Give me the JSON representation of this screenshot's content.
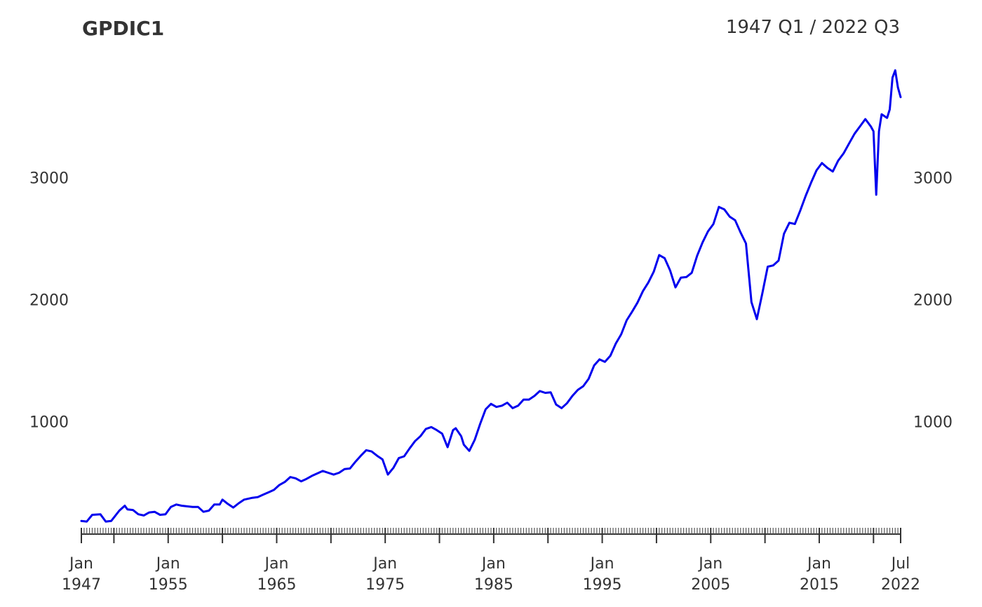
{
  "chart_data": {
    "type": "line",
    "title": "GPDIC1",
    "subtitle": "1947 Q1 / 2022 Q3",
    "xlabel": "",
    "ylabel": "",
    "x_range": [
      "1947-01",
      "2022-07"
    ],
    "ylim": [
      60,
      3900
    ],
    "y_ticks": [
      1000,
      2000,
      3000
    ],
    "x_major_ticks": [
      {
        "date": "1947-01",
        "label1": "Jan",
        "label2": "1947"
      },
      {
        "date": "1955-01",
        "label1": "Jan",
        "label2": "1955"
      },
      {
        "date": "1965-01",
        "label1": "Jan",
        "label2": "1965"
      },
      {
        "date": "1975-01",
        "label1": "Jan",
        "label2": "1975"
      },
      {
        "date": "1985-01",
        "label1": "Jan",
        "label2": "1985"
      },
      {
        "date": "1995-01",
        "label1": "Jan",
        "label2": "1995"
      },
      {
        "date": "2005-01",
        "label1": "Jan",
        "label2": "2005"
      },
      {
        "date": "2015-01",
        "label1": "Jan",
        "label2": "2015"
      },
      {
        "date": "2022-07",
        "label1": "Jul",
        "label2": "2022"
      }
    ],
    "x_unlabeled_ticks": [
      "1950-01",
      "1960-01",
      "1970-01",
      "1980-01",
      "1990-01",
      "2000-01",
      "2010-01",
      "2020-01"
    ],
    "grid": false,
    "legend": "none",
    "line_color": "#0000ee",
    "series": [
      {
        "values": [
          [
            "1947-01",
            185
          ],
          [
            "1947-07",
            180
          ],
          [
            "1948-01",
            235
          ],
          [
            "1948-10",
            240
          ],
          [
            "1949-04",
            180
          ],
          [
            "1949-10",
            185
          ],
          [
            "1950-07",
            270
          ],
          [
            "1951-01",
            310
          ],
          [
            "1951-04",
            280
          ],
          [
            "1951-10",
            275
          ],
          [
            "1952-04",
            240
          ],
          [
            "1952-10",
            230
          ],
          [
            "1953-04",
            255
          ],
          [
            "1953-10",
            260
          ],
          [
            "1954-04",
            235
          ],
          [
            "1954-10",
            240
          ],
          [
            "1955-04",
            300
          ],
          [
            "1955-10",
            320
          ],
          [
            "1956-04",
            310
          ],
          [
            "1956-10",
            305
          ],
          [
            "1957-04",
            300
          ],
          [
            "1957-10",
            300
          ],
          [
            "1958-04",
            260
          ],
          [
            "1958-10",
            270
          ],
          [
            "1959-04",
            320
          ],
          [
            "1959-10",
            320
          ],
          [
            "1960-01",
            360
          ],
          [
            "1960-07",
            325
          ],
          [
            "1961-01",
            295
          ],
          [
            "1961-07",
            330
          ],
          [
            "1962-01",
            360
          ],
          [
            "1962-10",
            375
          ],
          [
            "1963-04",
            380
          ],
          [
            "1963-10",
            400
          ],
          [
            "1964-04",
            420
          ],
          [
            "1964-10",
            440
          ],
          [
            "1965-04",
            480
          ],
          [
            "1965-10",
            505
          ],
          [
            "1966-04",
            545
          ],
          [
            "1966-10",
            535
          ],
          [
            "1967-04",
            510
          ],
          [
            "1967-10",
            530
          ],
          [
            "1968-04",
            555
          ],
          [
            "1968-10",
            575
          ],
          [
            "1969-04",
            595
          ],
          [
            "1969-10",
            580
          ],
          [
            "1970-04",
            565
          ],
          [
            "1970-10",
            580
          ],
          [
            "1971-04",
            610
          ],
          [
            "1971-10",
            615
          ],
          [
            "1972-04",
            670
          ],
          [
            "1972-10",
            720
          ],
          [
            "1973-04",
            765
          ],
          [
            "1973-10",
            755
          ],
          [
            "1974-04",
            720
          ],
          [
            "1974-10",
            690
          ],
          [
            "1975-04",
            565
          ],
          [
            "1975-10",
            620
          ],
          [
            "1976-04",
            700
          ],
          [
            "1976-10",
            715
          ],
          [
            "1977-04",
            780
          ],
          [
            "1977-10",
            840
          ],
          [
            "1978-04",
            880
          ],
          [
            "1978-10",
            940
          ],
          [
            "1979-04",
            955
          ],
          [
            "1979-10",
            930
          ],
          [
            "1980-04",
            900
          ],
          [
            "1980-10",
            790
          ],
          [
            "1981-04",
            930
          ],
          [
            "1981-07",
            945
          ],
          [
            "1982-01",
            880
          ],
          [
            "1982-04",
            810
          ],
          [
            "1982-10",
            760
          ],
          [
            "1983-04",
            850
          ],
          [
            "1983-10",
            980
          ],
          [
            "1984-04",
            1100
          ],
          [
            "1984-10",
            1145
          ],
          [
            "1985-04",
            1120
          ],
          [
            "1985-10",
            1130
          ],
          [
            "1986-04",
            1155
          ],
          [
            "1986-10",
            1110
          ],
          [
            "1987-04",
            1130
          ],
          [
            "1987-10",
            1180
          ],
          [
            "1988-04",
            1180
          ],
          [
            "1988-10",
            1210
          ],
          [
            "1989-04",
            1250
          ],
          [
            "1989-10",
            1235
          ],
          [
            "1990-04",
            1240
          ],
          [
            "1990-10",
            1140
          ],
          [
            "1991-04",
            1110
          ],
          [
            "1991-10",
            1150
          ],
          [
            "1992-04",
            1210
          ],
          [
            "1992-10",
            1260
          ],
          [
            "1993-04",
            1290
          ],
          [
            "1993-10",
            1350
          ],
          [
            "1994-04",
            1460
          ],
          [
            "1994-10",
            1510
          ],
          [
            "1995-04",
            1490
          ],
          [
            "1995-10",
            1540
          ],
          [
            "1996-04",
            1640
          ],
          [
            "1996-10",
            1715
          ],
          [
            "1997-04",
            1830
          ],
          [
            "1997-10",
            1900
          ],
          [
            "1998-04",
            1975
          ],
          [
            "1998-10",
            2070
          ],
          [
            "1999-04",
            2140
          ],
          [
            "1999-10",
            2230
          ],
          [
            "2000-04",
            2365
          ],
          [
            "2000-10",
            2340
          ],
          [
            "2001-04",
            2240
          ],
          [
            "2001-10",
            2100
          ],
          [
            "2002-04",
            2180
          ],
          [
            "2002-10",
            2185
          ],
          [
            "2003-04",
            2220
          ],
          [
            "2003-10",
            2360
          ],
          [
            "2004-04",
            2470
          ],
          [
            "2004-10",
            2560
          ],
          [
            "2005-04",
            2620
          ],
          [
            "2005-10",
            2760
          ],
          [
            "2006-04",
            2740
          ],
          [
            "2006-10",
            2680
          ],
          [
            "2007-04",
            2650
          ],
          [
            "2007-10",
            2550
          ],
          [
            "2008-04",
            2460
          ],
          [
            "2008-10",
            1980
          ],
          [
            "2009-04",
            1840
          ],
          [
            "2009-10",
            2050
          ],
          [
            "2010-04",
            2270
          ],
          [
            "2010-10",
            2280
          ],
          [
            "2011-04",
            2320
          ],
          [
            "2011-10",
            2540
          ],
          [
            "2012-04",
            2630
          ],
          [
            "2012-10",
            2620
          ],
          [
            "2013-04",
            2730
          ],
          [
            "2013-10",
            2850
          ],
          [
            "2014-04",
            2960
          ],
          [
            "2014-10",
            3060
          ],
          [
            "2015-04",
            3120
          ],
          [
            "2015-10",
            3080
          ],
          [
            "2016-04",
            3050
          ],
          [
            "2016-10",
            3140
          ],
          [
            "2017-04",
            3200
          ],
          [
            "2017-10",
            3280
          ],
          [
            "2018-04",
            3360
          ],
          [
            "2018-10",
            3420
          ],
          [
            "2019-04",
            3480
          ],
          [
            "2019-10",
            3420
          ],
          [
            "2020-01",
            3380
          ],
          [
            "2020-04",
            2860
          ],
          [
            "2020-07",
            3380
          ],
          [
            "2020-10",
            3520
          ],
          [
            "2021-04",
            3490
          ],
          [
            "2021-07",
            3560
          ],
          [
            "2021-10",
            3820
          ],
          [
            "2022-01",
            3880
          ],
          [
            "2022-04",
            3740
          ],
          [
            "2022-07",
            3660
          ]
        ]
      }
    ]
  }
}
